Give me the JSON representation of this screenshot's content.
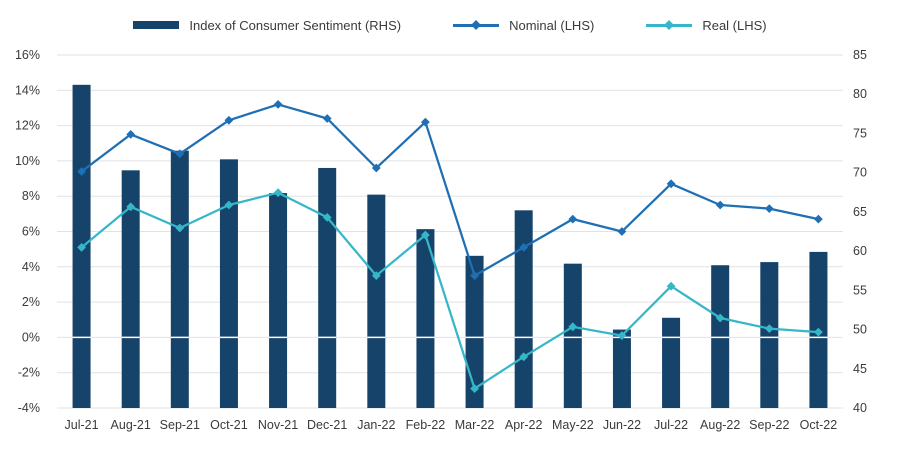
{
  "legend": {
    "items": [
      {
        "label": "Index of Consumer Sentiment (RHS)",
        "swatch": "bar",
        "color": "#16436A"
      },
      {
        "label": "Nominal (LHS)",
        "swatch": "line-diamond",
        "color": "#1F6FB4"
      },
      {
        "label": "Real (LHS)",
        "swatch": "line-diamond",
        "color": "#36B7C9"
      }
    ]
  },
  "chart_data": {
    "type": "combo-bar-line",
    "categories": [
      "Jul-21",
      "Aug-21",
      "Sep-21",
      "Oct-21",
      "Nov-21",
      "Dec-21",
      "Jan-22",
      "Feb-22",
      "Mar-22",
      "Apr-22",
      "May-22",
      "Jun-22",
      "Jul-22",
      "Aug-22",
      "Sep-22",
      "Oct-22"
    ],
    "series": [
      {
        "name": "Index of Consumer Sentiment (RHS)",
        "chart_type": "bar",
        "axis": "right",
        "color": "#16436A",
        "values": [
          81.2,
          70.3,
          72.8,
          71.7,
          67.4,
          70.6,
          67.2,
          62.8,
          59.4,
          65.2,
          58.4,
          50.0,
          51.5,
          58.2,
          58.6,
          59.9
        ]
      },
      {
        "name": "Nominal (LHS)",
        "chart_type": "line",
        "axis": "left",
        "color": "#1F6FB4",
        "marker": "diamond",
        "values": [
          9.4,
          11.5,
          10.4,
          12.3,
          13.2,
          12.4,
          9.6,
          12.2,
          3.5,
          5.1,
          6.7,
          6.0,
          8.7,
          7.5,
          7.3,
          6.7
        ]
      },
      {
        "name": "Real (LHS)",
        "chart_type": "line",
        "axis": "left",
        "color": "#36B7C9",
        "marker": "diamond",
        "values": [
          5.1,
          7.4,
          6.2,
          7.5,
          8.2,
          6.8,
          3.5,
          5.8,
          -2.9,
          -1.1,
          0.6,
          0.1,
          2.9,
          1.1,
          0.5,
          0.3
        ]
      }
    ],
    "left_axis": {
      "min": -4,
      "max": 16,
      "step": 2,
      "format": "percent",
      "tick_labels": [
        "16%",
        "14%",
        "12%",
        "10%",
        "8%",
        "6%",
        "4%",
        "2%",
        "0%",
        "-2%",
        "-4%"
      ]
    },
    "right_axis": {
      "min": 40,
      "max": 85,
      "step": 5,
      "tick_labels": [
        "85",
        "80",
        "75",
        "70",
        "65",
        "60",
        "55",
        "50",
        "45",
        "40"
      ]
    },
    "grid": true,
    "grid_color": "#E2E2E2",
    "zero_line_color": "#FFFFFF",
    "legend_position": "top"
  }
}
